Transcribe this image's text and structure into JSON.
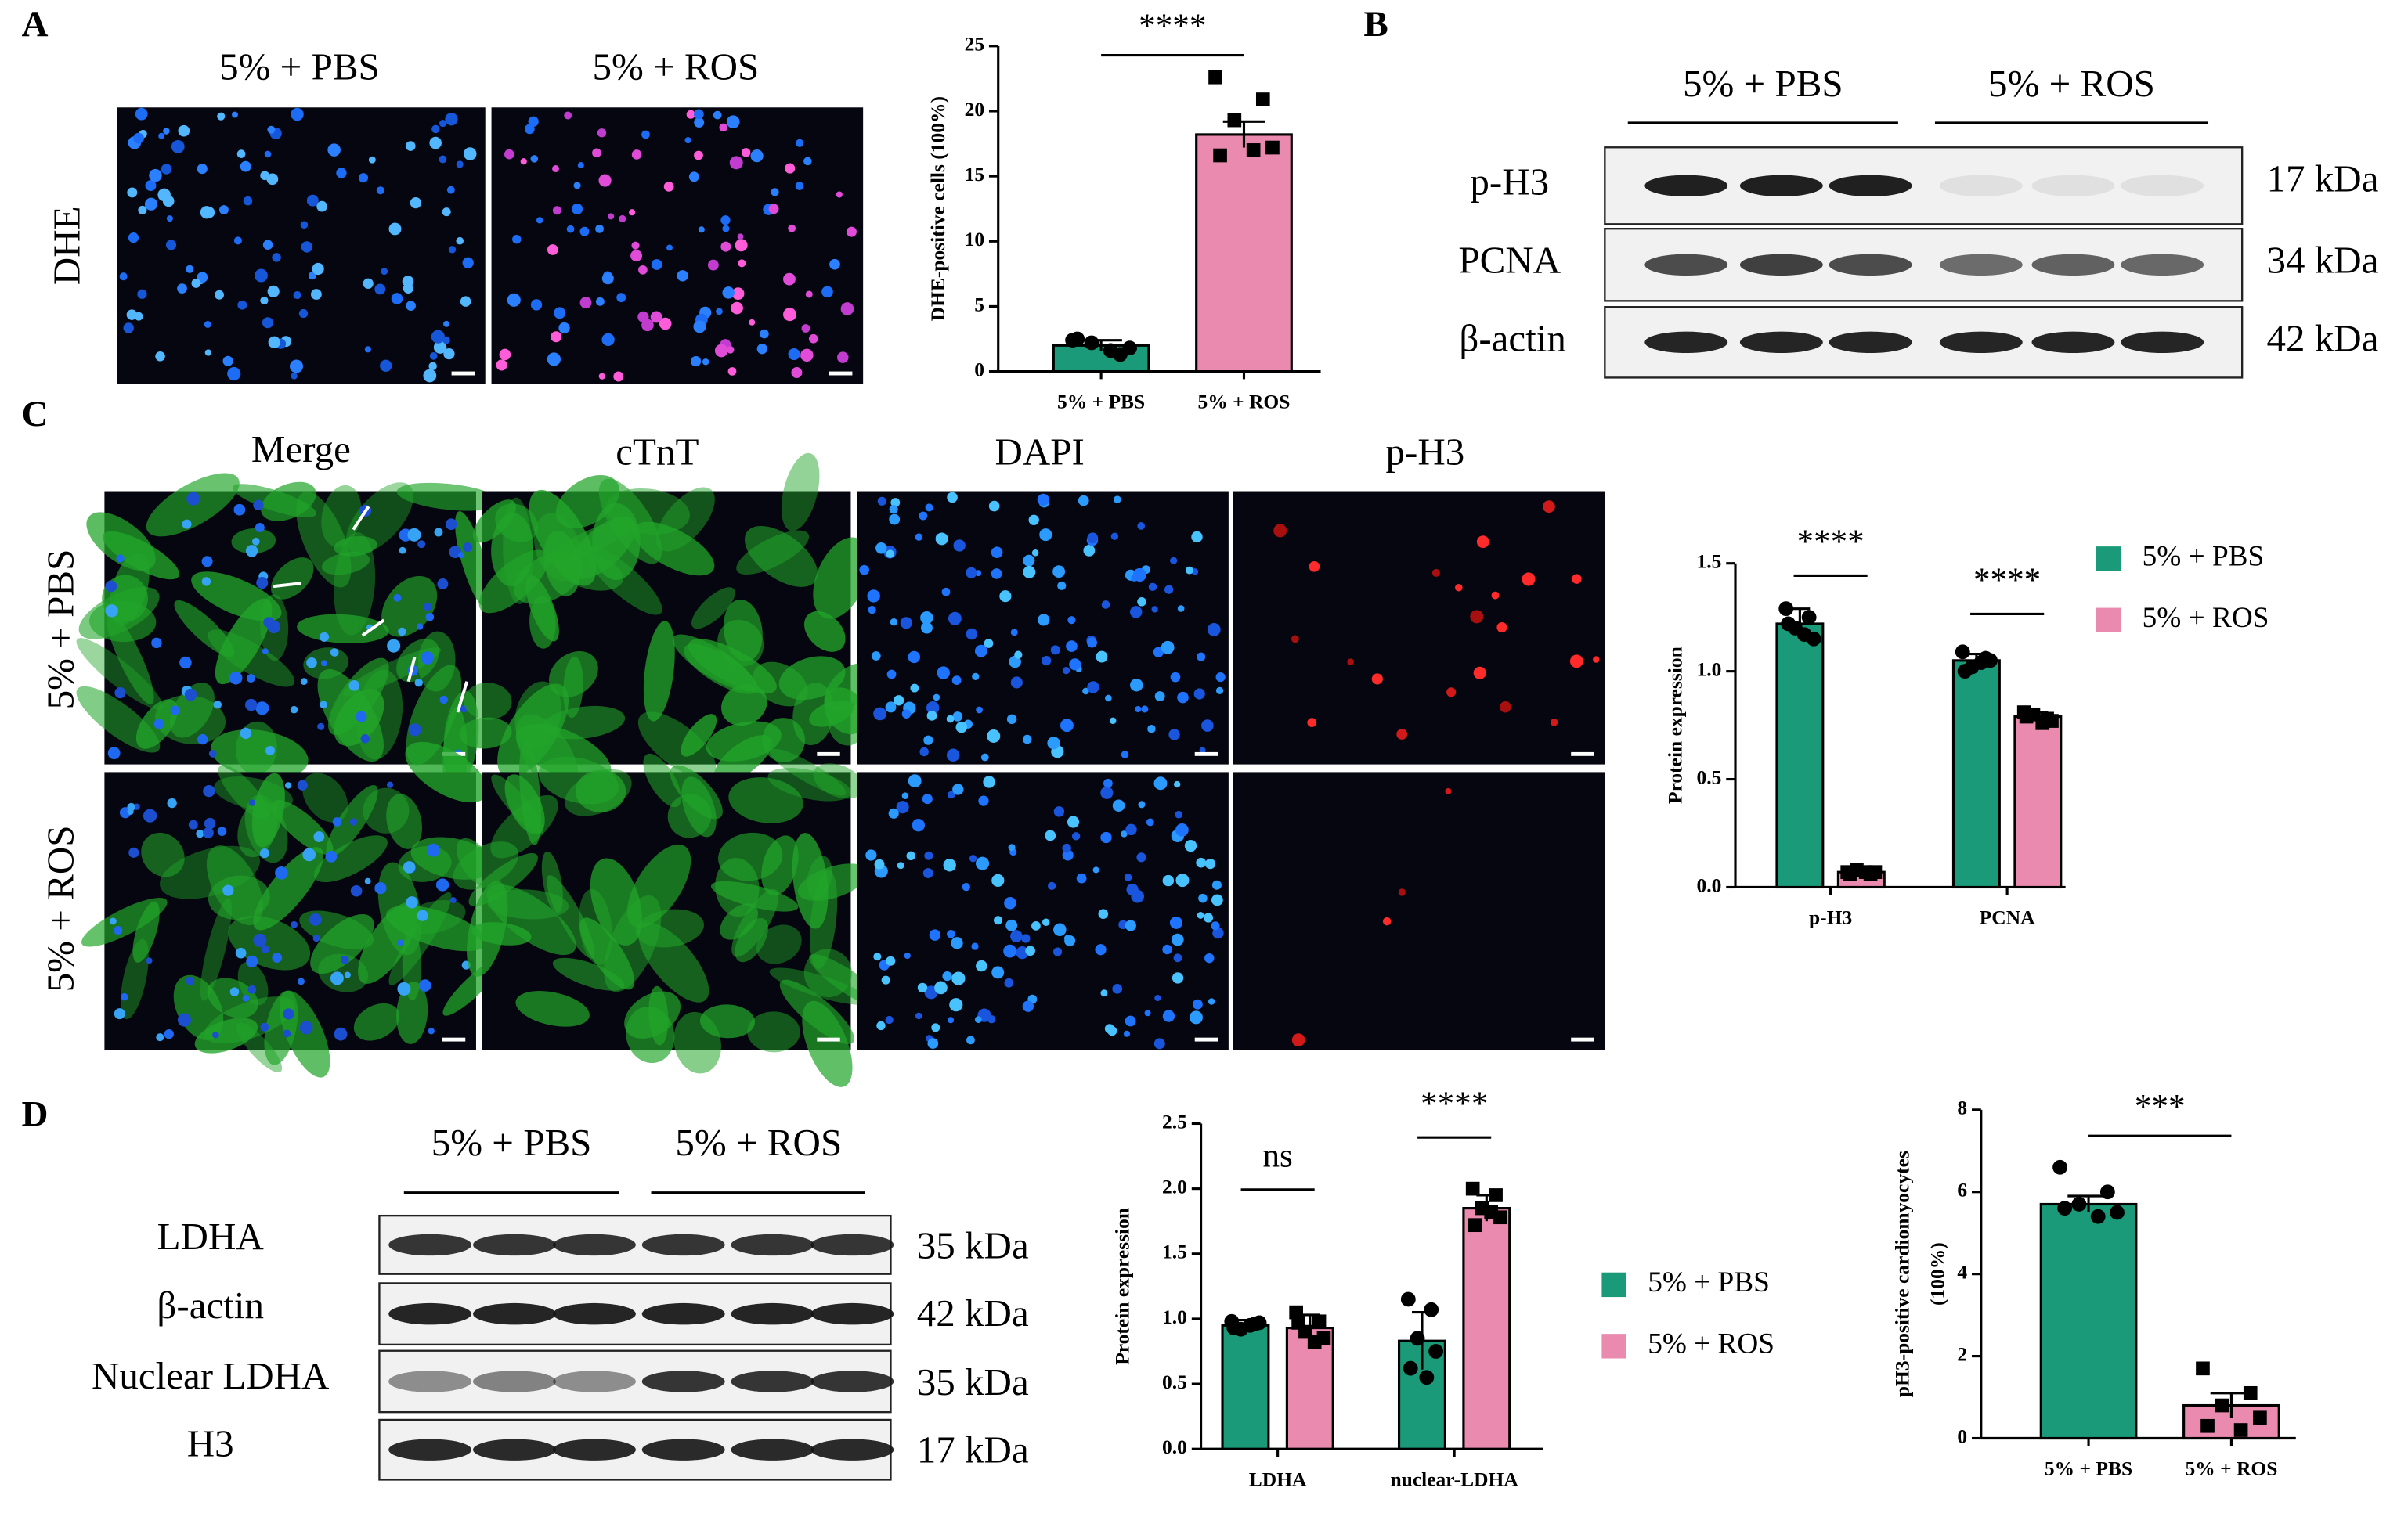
{
  "panels": {
    "labels": [
      "A",
      "B",
      "C",
      "D"
    ],
    "a": {
      "columns": [
        "5% + PBS",
        "5% + ROS"
      ],
      "row": "DHE"
    },
    "b": {
      "groups": [
        "5% + PBS",
        "5% + ROS"
      ],
      "bands": [
        {
          "name": "p-H3",
          "size": "17 kDa"
        },
        {
          "name": "PCNA",
          "size": "34 kDa"
        },
        {
          "name": "β-actin",
          "size": "42 kDa"
        }
      ]
    },
    "c": {
      "columns": [
        "Merge",
        "cTnT",
        "DAPI",
        "p-H3"
      ],
      "rows": [
        "5% + PBS",
        "5% + ROS"
      ]
    },
    "d": {
      "groups": [
        "5% + PBS",
        "5% + ROS"
      ],
      "bands": [
        {
          "name": "LDHA",
          "size": "35 kDa"
        },
        {
          "name": "β-actin",
          "size": "42 kDa"
        },
        {
          "name": "Nuclear LDHA",
          "size": "35 kDa"
        },
        {
          "name": "H3",
          "size": "17 kDa"
        }
      ]
    }
  },
  "chart_data": [
    {
      "type": "bar",
      "ylabel": "DHE-positive cells (100%)",
      "categories": [
        "5% + PBS",
        "5% + ROS"
      ],
      "values": [
        2,
        18.2
      ],
      "errors": [
        0.4,
        1.0
      ],
      "colors": [
        "#1a9a78",
        "#e98aae"
      ],
      "markers": [
        "circle",
        "square"
      ],
      "points": [
        [
          2.4,
          1.3,
          2.2,
          1.8,
          2.5,
          1.6
        ],
        [
          22.6,
          20.9,
          19.3,
          17.2,
          16.6,
          17.0
        ]
      ],
      "ylim": [
        0,
        25
      ],
      "yticks": [
        0,
        5,
        10,
        15,
        20,
        25
      ],
      "significance": "****"
    },
    {
      "type": "grouped_bar",
      "ylabel": "Protein expression",
      "categories": [
        "p-H3",
        "PCNA"
      ],
      "series": [
        {
          "name": "5% + PBS",
          "color": "#1a9a78",
          "marker": "circle",
          "values": [
            1.22,
            1.05
          ],
          "errors": [
            0.07,
            0.03
          ],
          "points": [
            [
              1.29,
              1.25,
              1.2,
              1.15,
              1.22,
              1.17
            ],
            [
              1.09,
              1.06,
              1.02,
              1.05,
              1.0,
              1.04
            ]
          ]
        },
        {
          "name": "5% + ROS",
          "color": "#e98aae",
          "marker": "square",
          "values": [
            0.07,
            0.79
          ],
          "errors": [
            0.01,
            0.02
          ],
          "points": [
            [
              0.07,
              0.06,
              0.08,
              0.07,
              0.06,
              0.07
            ],
            [
              0.81,
              0.78,
              0.8,
              0.77,
              0.79,
              0.76
            ]
          ]
        }
      ],
      "ylim": [
        0,
        1.5
      ],
      "yticks": [
        {
          "value": 0,
          "label": "0.0"
        },
        0.5,
        {
          "value": 1,
          "label": "1.0"
        },
        1.5
      ],
      "significance": [
        "****",
        "****"
      ],
      "legend": "right"
    },
    {
      "type": "grouped_bar",
      "ylabel": "Protein expression",
      "categories": [
        "LDHA",
        "nuclear-LDHA"
      ],
      "series": [
        {
          "name": "5% + PBS",
          "color": "#1a9a78",
          "marker": "circle",
          "values": [
            0.95,
            0.83
          ],
          "errors": [
            0.04,
            0.22
          ],
          "points": [
            [
              0.98,
              0.96,
              0.92,
              0.97,
              0.93,
              0.95
            ],
            [
              1.15,
              1.07,
              0.85,
              0.75,
              0.62,
              0.55
            ]
          ]
        },
        {
          "name": "5% + ROS",
          "color": "#e98aae",
          "marker": "square",
          "values": [
            0.93,
            1.85
          ],
          "errors": [
            0.1,
            0.1
          ],
          "points": [
            [
              1.05,
              0.98,
              0.9,
              0.85,
              0.97,
              0.82
            ],
            [
              2.0,
              1.95,
              1.85,
              1.78,
              1.72,
              1.82
            ]
          ]
        }
      ],
      "ylim": [
        0,
        2.5
      ],
      "yticks": [
        {
          "value": 0,
          "label": "0.0"
        },
        0.5,
        {
          "value": 1,
          "label": "1.0"
        },
        1.5,
        {
          "value": 2,
          "label": "2.0"
        },
        2.5
      ],
      "significance": [
        "ns",
        "****"
      ],
      "legend": "right"
    },
    {
      "type": "bar",
      "ylabel": [
        "pH3-positive cardiomyocytes",
        "(100%)"
      ],
      "categories": [
        "5% + PBS",
        "5% + ROS"
      ],
      "values": [
        5.7,
        0.8
      ],
      "errors": [
        0.2,
        0.3
      ],
      "colors": [
        "#1a9a78",
        "#e98aae"
      ],
      "markers": [
        "circle",
        "square"
      ],
      "points": [
        [
          6.6,
          6.0,
          5.7,
          5.5,
          5.6,
          5.4
        ],
        [
          1.7,
          1.1,
          0.8,
          0.5,
          0.3,
          0.2
        ]
      ],
      "ylim": [
        0,
        8
      ],
      "yticks": [
        0,
        2,
        4,
        6,
        8
      ],
      "significance": "***"
    }
  ]
}
